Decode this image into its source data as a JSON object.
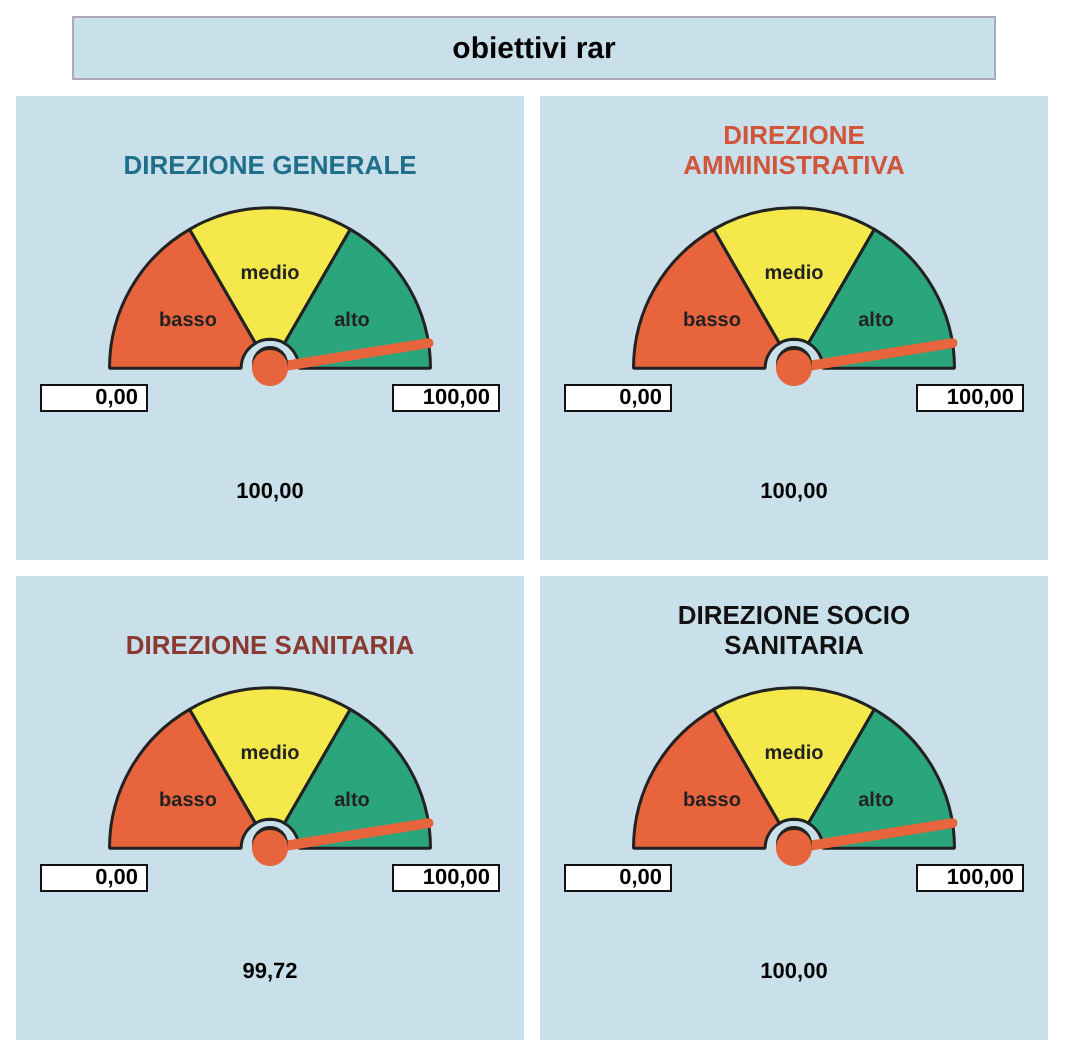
{
  "chart_data": [
    {
      "type": "other",
      "title": "obiettivi rar"
    },
    {
      "type": "donut",
      "title": "DIREZIONE GENERALE",
      "categories": [
        "basso",
        "medio",
        "alto"
      ],
      "values": [
        33.3,
        33.4,
        33.3
      ],
      "colors": [
        "#e8643c",
        "#f5e84a",
        "#2aa57c"
      ],
      "needle": "alto",
      "annotations": [
        "0,00",
        "100,00",
        "100,00"
      ]
    },
    {
      "type": "donut",
      "title": "DIREZIONE AMMINISTRATIVA",
      "categories": [
        "basso",
        "medio",
        "alto"
      ],
      "values": [
        33.3,
        33.4,
        33.3
      ],
      "colors": [
        "#e8643c",
        "#f5e84a",
        "#2aa57c"
      ],
      "needle": "alto",
      "annotations": [
        "0,00",
        "100,00",
        "100,00"
      ]
    },
    {
      "type": "donut",
      "title": "DIREZIONE SANITARIA",
      "categories": [
        "basso",
        "medio",
        "alto"
      ],
      "values": [
        33.3,
        33.4,
        33.3
      ],
      "colors": [
        "#e8643c",
        "#f5e84a",
        "#2aa57c"
      ],
      "needle": "alto",
      "annotations": [
        "0,00",
        "100,00",
        "99,72"
      ]
    },
    {
      "type": "donut",
      "title": "DIREZIONE SOCIO SANITARIA",
      "categories": [
        "basso",
        "medio",
        "alto"
      ],
      "values": [
        33.3,
        33.4,
        33.3
      ],
      "colors": [
        "#e8643c",
        "#f5e84a",
        "#2aa57c"
      ],
      "needle": "alto",
      "annotations": [
        "0,00",
        "100,00",
        "100,00"
      ]
    }
  ]
}
